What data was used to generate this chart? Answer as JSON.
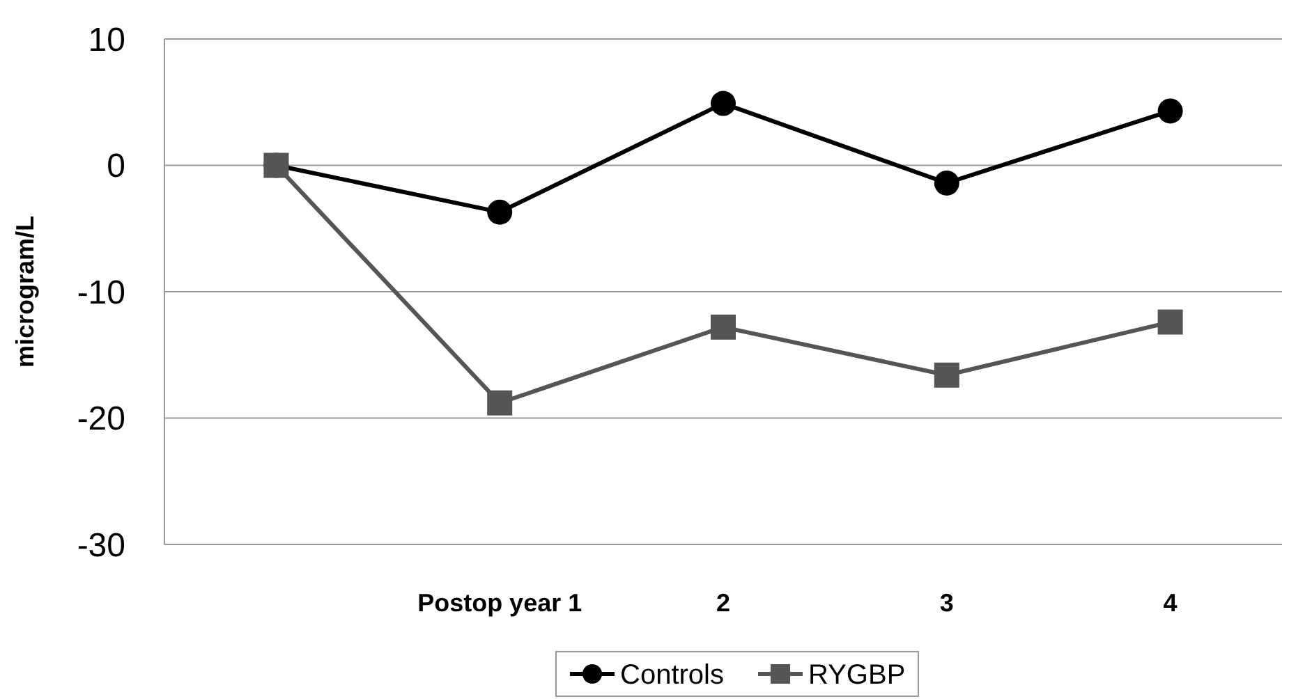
{
  "chart_data": {
    "type": "line",
    "ylabel": "microgram/L",
    "categories": [
      null,
      "Postop year 1",
      "2",
      "3",
      "4"
    ],
    "series": [
      {
        "name": "Controls",
        "color": "#000000",
        "marker": "circle",
        "values": [
          0,
          -3.7,
          4.9,
          -1.4,
          4.3
        ]
      },
      {
        "name": "RYGBP",
        "color": "#555555",
        "marker": "square",
        "values": [
          0,
          -18.8,
          -12.8,
          -16.6,
          -12.4
        ]
      }
    ],
    "ylim": [
      -30,
      10
    ],
    "yticks": [
      -30,
      -20,
      -10,
      0,
      10
    ],
    "grid": "y",
    "legend": "bottom"
  }
}
